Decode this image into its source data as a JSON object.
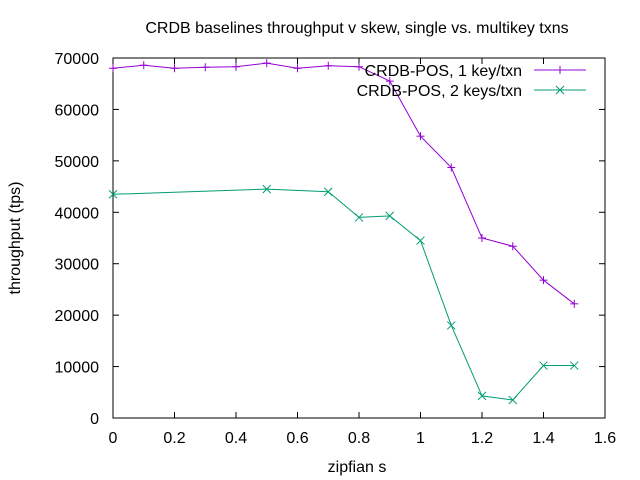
{
  "chart_data": {
    "type": "line",
    "title": "CRDB baselines throughput v skew, single vs. multikey txns",
    "xlabel": "zipfian s",
    "ylabel": "throughput (tps)",
    "xlim": [
      0,
      1.6
    ],
    "ylim": [
      0,
      70000
    ],
    "xticks": [
      0,
      0.2,
      0.4,
      0.6,
      0.8,
      1,
      1.2,
      1.4,
      1.6
    ],
    "yticks": [
      0,
      10000,
      20000,
      30000,
      40000,
      50000,
      60000,
      70000
    ],
    "grid": false,
    "legend_position": "top-right",
    "series": [
      {
        "name": "CRDB-POS, 1 key/txn",
        "color": "#9400d3",
        "marker": "plus",
        "points": [
          [
            0,
            68000
          ],
          [
            0.1,
            68600
          ],
          [
            0.2,
            68000
          ],
          [
            0.3,
            68200
          ],
          [
            0.4,
            68300
          ],
          [
            0.5,
            69000
          ],
          [
            0.6,
            68000
          ],
          [
            0.7,
            68500
          ],
          [
            0.8,
            68300
          ],
          [
            0.9,
            65500
          ],
          [
            1.0,
            54800
          ],
          [
            1.1,
            48700
          ],
          [
            1.2,
            35000
          ],
          [
            1.3,
            33400
          ],
          [
            1.4,
            26800
          ],
          [
            1.5,
            22200
          ]
        ]
      },
      {
        "name": "CRDB-POS, 2 keys/txn",
        "color": "#009e73",
        "marker": "cross",
        "points": [
          [
            0,
            43500
          ],
          [
            0.5,
            44500
          ],
          [
            0.7,
            44000
          ],
          [
            0.8,
            39000
          ],
          [
            0.9,
            39300
          ],
          [
            1.0,
            34500
          ],
          [
            1.1,
            18000
          ],
          [
            1.2,
            4300
          ],
          [
            1.3,
            3500
          ],
          [
            1.4,
            10200
          ],
          [
            1.5,
            10200
          ]
        ]
      }
    ]
  }
}
